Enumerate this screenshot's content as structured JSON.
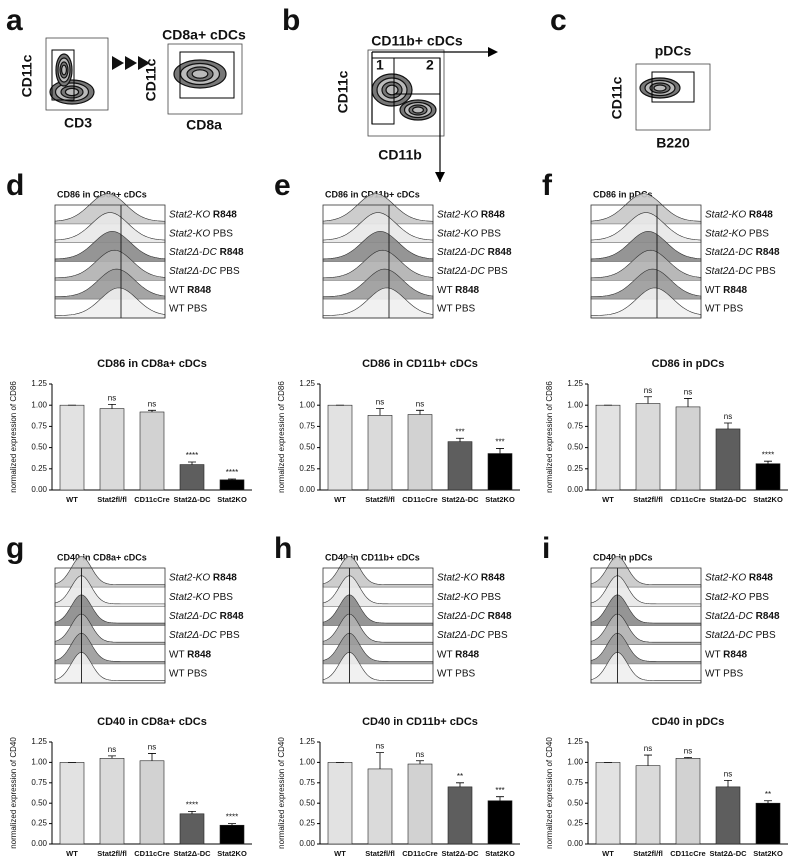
{
  "flow_panels": [
    {
      "letter": "a",
      "plots": [
        {
          "y_label": "CD11c",
          "x_label": "CD3"
        },
        {
          "title": "CD8a+ cDCs",
          "y_label": "CD11c",
          "x_label": "CD8a"
        }
      ]
    },
    {
      "letter": "b",
      "plots": [
        {
          "title": "CD11b+ cDCs",
          "y_label": "CD11c",
          "x_label": "CD11b",
          "gates": [
            "1",
            "2"
          ]
        }
      ]
    },
    {
      "letter": "c",
      "plots": [
        {
          "title": "pDCs",
          "y_label": "CD11c",
          "x_label": "B220"
        }
      ]
    }
  ],
  "histogram_panels": [
    {
      "letter": "d",
      "title": "CD86 in CD8a+ cDCs"
    },
    {
      "letter": "e",
      "title": "CD86 in CD11b+ cDCs"
    },
    {
      "letter": "f",
      "title": "CD86 in pDCs"
    },
    {
      "letter": "g",
      "title": "CD40 in CD8a+ cDCs"
    },
    {
      "letter": "h",
      "title": "CD40 in CD11b+ cDCs"
    },
    {
      "letter": "i",
      "title": "CD40 in pDCs"
    }
  ],
  "samples": [
    {
      "strain": "Stat2-KO",
      "treatment": "R848"
    },
    {
      "strain": "Stat2-KO",
      "treatment": "PBS"
    },
    {
      "strain": "Stat2Δ-DC",
      "treatment": "R848"
    },
    {
      "strain": "Stat2Δ-DC",
      "treatment": "PBS"
    },
    {
      "strain": "WT",
      "treatment": "R848"
    },
    {
      "strain": "WT",
      "treatment": "PBS"
    }
  ],
  "chart_data": [
    {
      "type": "bar",
      "title": "CD86 in CD8a+ cDCs",
      "y_label": "normalized expression of CD86",
      "categories": [
        "WT",
        "Stat2fl/fl",
        "CD11cCre",
        "Stat2Δ-DC",
        "Stat2KO"
      ],
      "values": [
        1.0,
        0.96,
        0.92,
        0.3,
        0.12
      ],
      "errors": [
        0,
        0.05,
        0.02,
        0.03,
        0.01
      ],
      "annotations": [
        null,
        "ns",
        "ns",
        "****",
        "****"
      ],
      "colors": [
        "#e2e2e2",
        "#dadada",
        "#d2d2d2",
        "#5e5e5e",
        "#000000"
      ],
      "ylim": [
        0,
        1.25
      ],
      "yticks": [
        {
          "value": 0,
          "label": "0.00"
        },
        {
          "value": 0.25,
          "label": "0.25"
        },
        {
          "value": 0.5,
          "label": "0.50"
        },
        {
          "value": 0.75,
          "label": "0.75"
        },
        {
          "value": 1,
          "label": "1.00"
        },
        {
          "value": 1.25,
          "label": "1.25"
        }
      ]
    },
    {
      "type": "bar",
      "title": "CD86 in CD11b+ cDCs",
      "y_label": "normalized expression of CD86",
      "categories": [
        "WT",
        "Stat2fl/fl",
        "CD11cCre",
        "Stat2Δ-DC",
        "Stat2KO"
      ],
      "values": [
        1.0,
        0.88,
        0.89,
        0.57,
        0.43
      ],
      "errors": [
        0,
        0.08,
        0.05,
        0.04,
        0.06
      ],
      "annotations": [
        null,
        "ns",
        "ns",
        "***",
        "***"
      ],
      "colors": [
        "#e2e2e2",
        "#dadada",
        "#d2d2d2",
        "#5e5e5e",
        "#000000"
      ],
      "ylim": [
        0,
        1.25
      ],
      "yticks": [
        {
          "value": 0,
          "label": "0.00"
        },
        {
          "value": 0.25,
          "label": "0.25"
        },
        {
          "value": 0.5,
          "label": "0.50"
        },
        {
          "value": 0.75,
          "label": "0.75"
        },
        {
          "value": 1,
          "label": "1.00"
        },
        {
          "value": 1.25,
          "label": "1.25"
        }
      ]
    },
    {
      "type": "bar",
      "title": "CD86 in pDCs",
      "y_label": "normalized expression of CD86",
      "categories": [
        "WT",
        "Stat2fl/fl",
        "CD11cCre",
        "Stat2Δ-DC",
        "Stat2KO"
      ],
      "values": [
        1.0,
        1.02,
        0.98,
        0.72,
        0.31
      ],
      "errors": [
        0,
        0.08,
        0.1,
        0.07,
        0.03
      ],
      "annotations": [
        null,
        "ns",
        "ns",
        "ns",
        "****"
      ],
      "colors": [
        "#e2e2e2",
        "#dadada",
        "#d2d2d2",
        "#5e5e5e",
        "#000000"
      ],
      "ylim": [
        0,
        1.25
      ],
      "yticks": [
        {
          "value": 0,
          "label": "0.00"
        },
        {
          "value": 0.25,
          "label": "0.25"
        },
        {
          "value": 0.5,
          "label": "0.50"
        },
        {
          "value": 0.75,
          "label": "0.75"
        },
        {
          "value": 1,
          "label": "1.00"
        },
        {
          "value": 1.25,
          "label": "1.25"
        }
      ]
    },
    {
      "type": "bar",
      "title": "CD40 in CD8a+ cDCs",
      "y_label": "normalized expression of CD40",
      "categories": [
        "WT",
        "Stat2fl/fl",
        "CD11cCre",
        "Stat2Δ-DC",
        "Stat2KO"
      ],
      "values": [
        1.0,
        1.05,
        1.02,
        0.37,
        0.23
      ],
      "errors": [
        0,
        0.03,
        0.09,
        0.03,
        0.02
      ],
      "annotations": [
        null,
        "ns",
        "ns",
        "****",
        "****"
      ],
      "colors": [
        "#e2e2e2",
        "#dadada",
        "#d2d2d2",
        "#5e5e5e",
        "#000000"
      ],
      "ylim": [
        0,
        1.25
      ],
      "yticks": [
        {
          "value": 0,
          "label": "0.00"
        },
        {
          "value": 0.25,
          "label": "0.25"
        },
        {
          "value": 0.5,
          "label": "0.50"
        },
        {
          "value": 0.75,
          "label": "0.75"
        },
        {
          "value": 1,
          "label": "1.00"
        },
        {
          "value": 1.25,
          "label": "1.25"
        }
      ]
    },
    {
      "type": "bar",
      "title": "CD40 in CD11b+ cDCs",
      "y_label": "normalized expression of CD40",
      "categories": [
        "WT",
        "Stat2fl/fl",
        "CD11cCre",
        "Stat2Δ-DC",
        "Stat2KO"
      ],
      "values": [
        1.0,
        0.92,
        0.98,
        0.7,
        0.53
      ],
      "errors": [
        0,
        0.2,
        0.04,
        0.05,
        0.05
      ],
      "annotations": [
        null,
        "ns",
        "ns",
        "**",
        "***"
      ],
      "colors": [
        "#e2e2e2",
        "#dadada",
        "#d2d2d2",
        "#5e5e5e",
        "#000000"
      ],
      "ylim": [
        0,
        1.25
      ],
      "yticks": [
        {
          "value": 0,
          "label": "0.00"
        },
        {
          "value": 0.25,
          "label": "0.25"
        },
        {
          "value": 0.5,
          "label": "0.50"
        },
        {
          "value": 0.75,
          "label": "0.75"
        },
        {
          "value": 1,
          "label": "1.00"
        },
        {
          "value": 1.25,
          "label": "1.25"
        }
      ]
    },
    {
      "type": "bar",
      "title": "CD40 in pDCs",
      "y_label": "normalized expression of CD40",
      "categories": [
        "WT",
        "Stat2fl/fl",
        "CD11cCre",
        "Stat2Δ-DC",
        "Stat2KO"
      ],
      "values": [
        1.0,
        0.96,
        1.05,
        0.7,
        0.5
      ],
      "errors": [
        0,
        0.13,
        0.01,
        0.08,
        0.03
      ],
      "annotations": [
        null,
        "ns",
        "ns",
        "ns",
        "**"
      ],
      "colors": [
        "#e2e2e2",
        "#dadada",
        "#d2d2d2",
        "#5e5e5e",
        "#000000"
      ],
      "ylim": [
        0,
        1.25
      ],
      "yticks": [
        {
          "value": 0,
          "label": "0.00"
        },
        {
          "value": 0.25,
          "label": "0.25"
        },
        {
          "value": 0.5,
          "label": "0.50"
        },
        {
          "value": 0.75,
          "label": "0.75"
        },
        {
          "value": 1,
          "label": "1.00"
        },
        {
          "value": 1.25,
          "label": "1.25"
        }
      ]
    }
  ]
}
